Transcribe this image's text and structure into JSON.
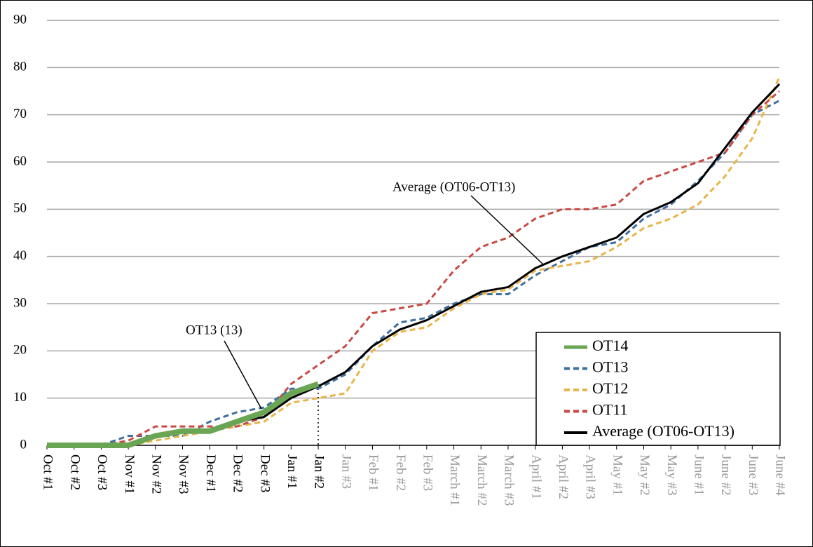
{
  "chart_data": {
    "type": "line",
    "categories": [
      "Oct #1",
      "Oct #2",
      "Oct #3",
      "Nov #1",
      "Nov #2",
      "Nov #3",
      "Dec #1",
      "Dec #2",
      "Dec #3",
      "Jan #1",
      "Jan #2",
      "Jan #3",
      "Feb #1",
      "Feb #2",
      "Feb #3",
      "March #1",
      "March #2",
      "March #3",
      "April #1",
      "April #2",
      "April #3",
      "May #1",
      "May #2",
      "May #3",
      "June #1",
      "June #2",
      "June #3",
      "June #4"
    ],
    "category_colors": [
      "#000",
      "#000",
      "#000",
      "#000",
      "#000",
      "#000",
      "#000",
      "#000",
      "#000",
      "#000",
      "#000",
      "#999",
      "#999",
      "#999",
      "#999",
      "#999",
      "#999",
      "#999",
      "#999",
      "#999",
      "#999",
      "#999",
      "#999",
      "#999",
      "#999",
      "#999",
      "#999",
      "#999"
    ],
    "series": [
      {
        "name": "OT14",
        "color": "#6aa553",
        "style": "solid",
        "width": 8,
        "values": [
          0,
          0,
          0,
          0,
          2,
          3,
          3,
          5,
          7,
          11,
          13,
          null,
          null,
          null,
          null,
          null,
          null,
          null,
          null,
          null,
          null,
          null,
          null,
          null,
          null,
          null,
          null,
          null
        ]
      },
      {
        "name": "OT13",
        "color": "#3f6f9f",
        "style": "dashed",
        "width": 3,
        "values": [
          0,
          0,
          0,
          2,
          2,
          2,
          5,
          7,
          8,
          12,
          12,
          15,
          21,
          26,
          27,
          30,
          32,
          32,
          36,
          39,
          42,
          43,
          48,
          51,
          56,
          62,
          70,
          73
        ]
      },
      {
        "name": "OT12",
        "color": "#e8b54a",
        "style": "dashed",
        "width": 3,
        "values": [
          0,
          0,
          0,
          0,
          1,
          2,
          3,
          4,
          5,
          9,
          10,
          11,
          20,
          24,
          25,
          29,
          32,
          33,
          37,
          38,
          39,
          42,
          46,
          48,
          51,
          57,
          65,
          78
        ]
      },
      {
        "name": "OT11",
        "color": "#c94a44",
        "style": "dashed",
        "width": 3,
        "values": [
          0,
          0,
          0,
          1,
          4,
          4,
          4,
          4,
          6,
          13,
          17,
          21,
          28,
          29,
          30,
          37,
          42,
          44,
          48,
          50,
          50,
          51,
          56,
          58,
          60,
          62,
          70,
          75
        ]
      },
      {
        "name": "Average (OT06-OT13)",
        "color": "#000000",
        "style": "solid",
        "width": 3,
        "values": [
          0,
          0,
          0,
          0,
          2,
          3,
          3,
          5,
          6,
          10,
          12.5,
          15.5,
          21,
          24.5,
          26.5,
          29.5,
          32.5,
          33.5,
          37.5,
          40,
          42,
          44,
          49,
          51.5,
          55.5,
          63,
          70.5,
          76.5
        ]
      }
    ],
    "annotations": [
      {
        "text": "Average (OT06-OT13)"
      },
      {
        "text": "OT13 (13)"
      }
    ],
    "ylim": [
      0,
      90
    ],
    "yticks": [
      0,
      10,
      20,
      30,
      40,
      50,
      60,
      70,
      80,
      90
    ],
    "grid": true,
    "legend": "lower right"
  }
}
